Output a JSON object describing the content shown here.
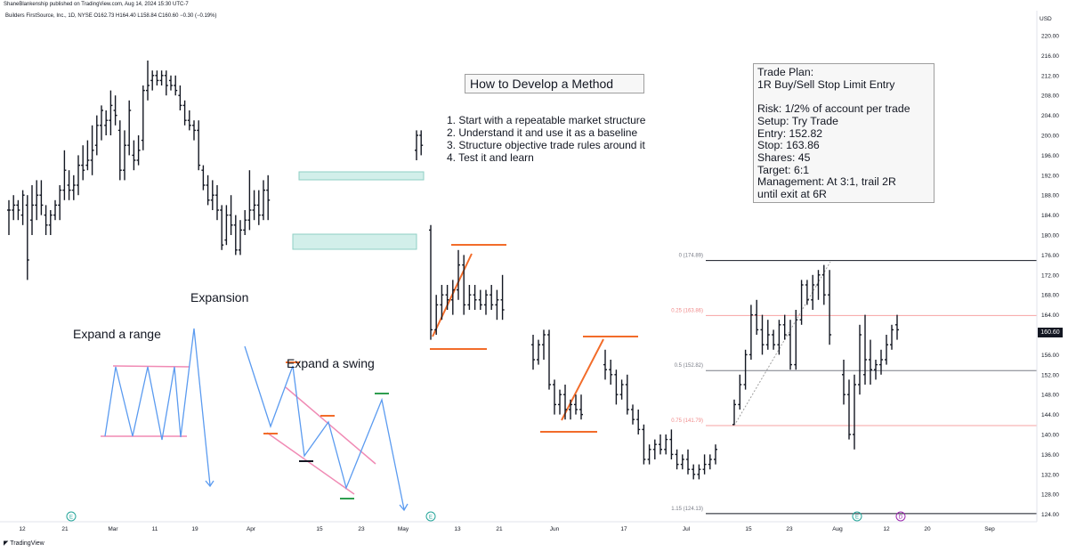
{
  "header": {
    "published_by": "ShaneBlankenship published on TradingView.com, Aug 14, 2024 15:30 UTC-7",
    "symbol_line": "Builders FirstSource, Inc., 1D, NYSE  O162.73  H164.40  L158.84  C160.60  −0.30 (−0.19%)"
  },
  "title_box": "How to Develop a Method",
  "steps": [
    "1. Start with a repeatable market structure",
    "2. Understand it and use it as a baseline",
    "3. Structure objective trade rules around it",
    "4. Test it and learn"
  ],
  "trade_plan": [
    "Trade Plan:",
    "1R Buy/Sell Stop Limit Entry",
    "",
    "Risk: 1/2% of account per trade",
    "Setup: Try Trade",
    "Entry: 152.82",
    "Stop: 163.86",
    "Shares: 45",
    "Target: 6:1",
    "Management: At 3:1, trail 2R",
    "until exit at 6R"
  ],
  "labels": {
    "expansion": "Expansion",
    "expand_range": "Expand a range",
    "expand_swing": "Expand a swing"
  },
  "currency": "USD",
  "last_price": "160.60",
  "footer": "TradingView",
  "colors": {
    "bar": "#131722",
    "orange": "#f26c2a",
    "teal_fill": "#d2efea",
    "teal_border": "#8fcfc4",
    "blue": "#5b9bf0",
    "pink": "#f08ab4",
    "green": "#2e9e4f",
    "fib_red": "#f7a3a3",
    "fib_gray": "#787b86",
    "event_green": "#26a69a",
    "event_purple": "#9c27b0"
  },
  "chart_data": {
    "type": "ohlc",
    "title": "Builders FirstSource, Inc., 1D, NYSE",
    "ylim": [
      122,
      222
    ],
    "y_ticks": [
      124,
      128,
      132,
      136,
      140,
      144,
      148,
      152,
      156,
      160,
      164,
      168,
      172,
      176,
      180,
      184,
      188,
      192,
      196,
      200,
      204,
      208,
      212,
      216,
      220
    ],
    "x_tick_labels": [
      "12",
      "21",
      "Mar",
      "11",
      "19",
      "Apr",
      "15",
      "23",
      "May",
      "13",
      "21",
      "Jun",
      "17",
      "Jul",
      "15",
      "23",
      "Aug",
      "12",
      "20",
      "Sep"
    ],
    "fib_levels": [
      {
        "ratio": "0",
        "price": 174.89,
        "label": "0 (174.89)"
      },
      {
        "ratio": "0.25",
        "price": 163.86,
        "label": "0.25 (163.86)"
      },
      {
        "ratio": "0.5",
        "price": 152.82,
        "label": "0.5 (152.82)"
      },
      {
        "ratio": "0.75",
        "price": 141.79,
        "label": "0.75 (141.79)"
      },
      {
        "ratio": "1.15",
        "price": 124.13,
        "label": "1.15 (124.13)"
      }
    ],
    "bars": [
      {
        "o": 185,
        "h": 187,
        "l": 180,
        "c": 185
      },
      {
        "o": 185,
        "h": 188,
        "l": 183,
        "c": 186
      },
      {
        "o": 186,
        "h": 187,
        "l": 183,
        "c": 185
      },
      {
        "o": 184,
        "h": 189,
        "l": 182,
        "c": 188
      },
      {
        "o": 186,
        "h": 188,
        "l": 171,
        "c": 175
      },
      {
        "o": 183,
        "h": 190,
        "l": 180,
        "c": 186
      },
      {
        "o": 186,
        "h": 191,
        "l": 183,
        "c": 188
      },
      {
        "o": 188,
        "h": 191,
        "l": 184,
        "c": 186
      },
      {
        "o": 184,
        "h": 186,
        "l": 180,
        "c": 182
      },
      {
        "o": 182,
        "h": 185,
        "l": 180,
        "c": 184
      },
      {
        "o": 184,
        "h": 187,
        "l": 183,
        "c": 186
      },
      {
        "o": 186,
        "h": 190,
        "l": 183,
        "c": 189
      },
      {
        "o": 189,
        "h": 197,
        "l": 187,
        "c": 193
      },
      {
        "o": 190,
        "h": 193,
        "l": 187,
        "c": 189
      },
      {
        "o": 189,
        "h": 192,
        "l": 187,
        "c": 190
      },
      {
        "o": 190,
        "h": 196,
        "l": 188,
        "c": 194
      },
      {
        "o": 194,
        "h": 198,
        "l": 191,
        "c": 193
      },
      {
        "o": 194,
        "h": 199,
        "l": 193,
        "c": 195
      },
      {
        "o": 195,
        "h": 202,
        "l": 192,
        "c": 197
      },
      {
        "o": 198,
        "h": 204,
        "l": 196,
        "c": 202
      },
      {
        "o": 202,
        "h": 206,
        "l": 199,
        "c": 205
      },
      {
        "o": 202,
        "h": 205,
        "l": 200,
        "c": 203
      },
      {
        "o": 203,
        "h": 209,
        "l": 200,
        "c": 206
      },
      {
        "o": 205,
        "h": 208,
        "l": 202,
        "c": 204
      },
      {
        "o": 201,
        "h": 203,
        "l": 191,
        "c": 193
      },
      {
        "o": 193,
        "h": 201,
        "l": 191,
        "c": 198
      },
      {
        "o": 198,
        "h": 207,
        "l": 196,
        "c": 205
      },
      {
        "o": 196,
        "h": 199,
        "l": 193,
        "c": 195
      },
      {
        "o": 195,
        "h": 200,
        "l": 194,
        "c": 197
      },
      {
        "o": 199,
        "h": 210,
        "l": 197,
        "c": 209
      },
      {
        "o": 209,
        "h": 215,
        "l": 207,
        "c": 210
      },
      {
        "o": 211,
        "h": 213,
        "l": 209,
        "c": 212
      },
      {
        "o": 212,
        "h": 213,
        "l": 210,
        "c": 211
      },
      {
        "o": 211,
        "h": 213,
        "l": 210,
        "c": 212
      },
      {
        "o": 212,
        "h": 213,
        "l": 208,
        "c": 210
      },
      {
        "o": 211,
        "h": 212,
        "l": 209,
        "c": 210
      },
      {
        "o": 210,
        "h": 212,
        "l": 208,
        "c": 209
      },
      {
        "o": 208,
        "h": 210,
        "l": 205,
        "c": 206
      },
      {
        "o": 206,
        "h": 207,
        "l": 202,
        "c": 203
      },
      {
        "o": 203,
        "h": 205,
        "l": 201,
        "c": 202
      },
      {
        "o": 202,
        "h": 203,
        "l": 199,
        "c": 201
      },
      {
        "o": 201,
        "h": 203,
        "l": 193,
        "c": 194
      },
      {
        "o": 193,
        "h": 194,
        "l": 189,
        "c": 190
      },
      {
        "o": 190,
        "h": 192,
        "l": 186,
        "c": 187
      },
      {
        "o": 187,
        "h": 191,
        "l": 185,
        "c": 188
      },
      {
        "o": 188,
        "h": 190,
        "l": 183,
        "c": 185
      },
      {
        "o": 185,
        "h": 186,
        "l": 177,
        "c": 178
      },
      {
        "o": 179,
        "h": 186,
        "l": 178,
        "c": 184
      },
      {
        "o": 184,
        "h": 188,
        "l": 180,
        "c": 182
      },
      {
        "o": 182,
        "h": 184,
        "l": 176,
        "c": 177
      },
      {
        "o": 177,
        "h": 183,
        "l": 176,
        "c": 181
      },
      {
        "o": 181,
        "h": 185,
        "l": 180,
        "c": 183
      },
      {
        "o": 183,
        "h": 193,
        "l": 181,
        "c": 185
      },
      {
        "o": 185,
        "h": 189,
        "l": 183,
        "c": 186
      },
      {
        "o": 186,
        "h": 189,
        "l": 182,
        "c": 184
      },
      {
        "o": 184,
        "h": 191,
        "l": 183,
        "c": 189
      },
      {
        "o": 189,
        "h": 192,
        "l": 183,
        "c": 187
      },
      {
        "o": 197,
        "h": 201,
        "l": 195,
        "c": 200
      },
      {
        "o": 200,
        "h": 201,
        "l": 196,
        "c": 198
      },
      {
        "o": 181,
        "h": 182,
        "l": 159,
        "c": 161
      },
      {
        "o": 161,
        "h": 168,
        "l": 160,
        "c": 166
      },
      {
        "o": 166,
        "h": 170,
        "l": 163,
        "c": 168
      },
      {
        "o": 168,
        "h": 170,
        "l": 165,
        "c": 167
      },
      {
        "o": 167,
        "h": 171,
        "l": 164,
        "c": 169
      },
      {
        "o": 169,
        "h": 177,
        "l": 167,
        "c": 174
      },
      {
        "o": 174,
        "h": 176,
        "l": 164,
        "c": 166
      },
      {
        "o": 166,
        "h": 170,
        "l": 165,
        "c": 168
      },
      {
        "o": 168,
        "h": 170,
        "l": 165,
        "c": 167
      },
      {
        "o": 167,
        "h": 169,
        "l": 165,
        "c": 166
      },
      {
        "o": 166,
        "h": 169,
        "l": 164,
        "c": 168
      },
      {
        "o": 168,
        "h": 170,
        "l": 165,
        "c": 166
      },
      {
        "o": 166,
        "h": 169,
        "l": 163,
        "c": 167
      },
      {
        "o": 167,
        "h": 172,
        "l": 163,
        "c": 165
      },
      {
        "o": 158,
        "h": 160,
        "l": 153,
        "c": 155
      },
      {
        "o": 155,
        "h": 159,
        "l": 154,
        "c": 158
      },
      {
        "o": 158,
        "h": 161,
        "l": 155,
        "c": 160
      },
      {
        "o": 160,
        "h": 161,
        "l": 149,
        "c": 150
      },
      {
        "o": 150,
        "h": 151,
        "l": 144,
        "c": 146
      },
      {
        "o": 146,
        "h": 149,
        "l": 144,
        "c": 148
      },
      {
        "o": 148,
        "h": 150,
        "l": 143,
        "c": 145
      },
      {
        "o": 145,
        "h": 147,
        "l": 143,
        "c": 146
      },
      {
        "o": 146,
        "h": 148,
        "l": 144,
        "c": 145
      },
      {
        "o": 145,
        "h": 148,
        "l": 143,
        "c": 144
      },
      {
        "o": 154,
        "h": 157,
        "l": 151,
        "c": 153
      },
      {
        "o": 153,
        "h": 155,
        "l": 150,
        "c": 152
      },
      {
        "o": 152,
        "h": 153,
        "l": 146,
        "c": 148
      },
      {
        "o": 148,
        "h": 151,
        "l": 147,
        "c": 150
      },
      {
        "o": 150,
        "h": 152,
        "l": 144,
        "c": 145
      },
      {
        "o": 145,
        "h": 146,
        "l": 142,
        "c": 143
      },
      {
        "o": 143,
        "h": 145,
        "l": 140,
        "c": 141
      },
      {
        "o": 141,
        "h": 142,
        "l": 134,
        "c": 135
      },
      {
        "o": 135,
        "h": 138,
        "l": 134,
        "c": 137
      },
      {
        "o": 137,
        "h": 139,
        "l": 135,
        "c": 138
      },
      {
        "o": 138,
        "h": 140,
        "l": 136,
        "c": 137
      },
      {
        "o": 137,
        "h": 140,
        "l": 136,
        "c": 139
      },
      {
        "o": 139,
        "h": 141,
        "l": 135,
        "c": 136
      },
      {
        "o": 136,
        "h": 137,
        "l": 133,
        "c": 134
      },
      {
        "o": 134,
        "h": 136,
        "l": 133,
        "c": 135
      },
      {
        "o": 135,
        "h": 137,
        "l": 132,
        "c": 133
      },
      {
        "o": 133,
        "h": 134,
        "l": 131,
        "c": 132
      },
      {
        "o": 132,
        "h": 134,
        "l": 131,
        "c": 133
      },
      {
        "o": 133,
        "h": 136,
        "l": 132,
        "c": 134
      },
      {
        "o": 134,
        "h": 136,
        "l": 133,
        "c": 135
      },
      {
        "o": 135,
        "h": 138,
        "l": 134,
        "c": 137
      },
      {
        "o": 142,
        "h": 147,
        "l": 142,
        "c": 146
      },
      {
        "o": 146,
        "h": 152,
        "l": 145,
        "c": 150
      },
      {
        "o": 150,
        "h": 157,
        "l": 149,
        "c": 156
      },
      {
        "o": 156,
        "h": 166,
        "l": 155,
        "c": 164
      },
      {
        "o": 164,
        "h": 167,
        "l": 160,
        "c": 161
      },
      {
        "o": 161,
        "h": 164,
        "l": 156,
        "c": 158
      },
      {
        "o": 158,
        "h": 163,
        "l": 157,
        "c": 160
      },
      {
        "o": 160,
        "h": 161,
        "l": 157,
        "c": 158
      },
      {
        "o": 158,
        "h": 163,
        "l": 156,
        "c": 162
      },
      {
        "o": 162,
        "h": 164,
        "l": 159,
        "c": 160
      },
      {
        "o": 160,
        "h": 163,
        "l": 153,
        "c": 154
      },
      {
        "o": 154,
        "h": 165,
        "l": 153,
        "c": 163
      },
      {
        "o": 163,
        "h": 171,
        "l": 162,
        "c": 170
      },
      {
        "o": 170,
        "h": 171,
        "l": 166,
        "c": 167
      },
      {
        "o": 167,
        "h": 172,
        "l": 165,
        "c": 170
      },
      {
        "o": 170,
        "h": 173,
        "l": 167,
        "c": 172
      },
      {
        "o": 172,
        "h": 174,
        "l": 166,
        "c": 168
      },
      {
        "o": 168,
        "h": 173,
        "l": 158,
        "c": 160
      },
      {
        "o": 152,
        "h": 155,
        "l": 146,
        "c": 148
      },
      {
        "o": 148,
        "h": 151,
        "l": 139,
        "c": 140
      },
      {
        "o": 140,
        "h": 152,
        "l": 137,
        "c": 150
      },
      {
        "o": 150,
        "h": 162,
        "l": 148,
        "c": 160
      },
      {
        "o": 152,
        "h": 164,
        "l": 150,
        "c": 155
      },
      {
        "o": 155,
        "h": 159,
        "l": 150,
        "c": 153
      },
      {
        "o": 153,
        "h": 155,
        "l": 151,
        "c": 154
      },
      {
        "o": 154,
        "h": 157,
        "l": 152,
        "c": 155
      },
      {
        "o": 155,
        "h": 160,
        "l": 154,
        "c": 158
      },
      {
        "o": 158,
        "h": 162,
        "l": 157,
        "c": 161
      },
      {
        "o": 162,
        "h": 164,
        "l": 159,
        "c": 161
      }
    ]
  }
}
